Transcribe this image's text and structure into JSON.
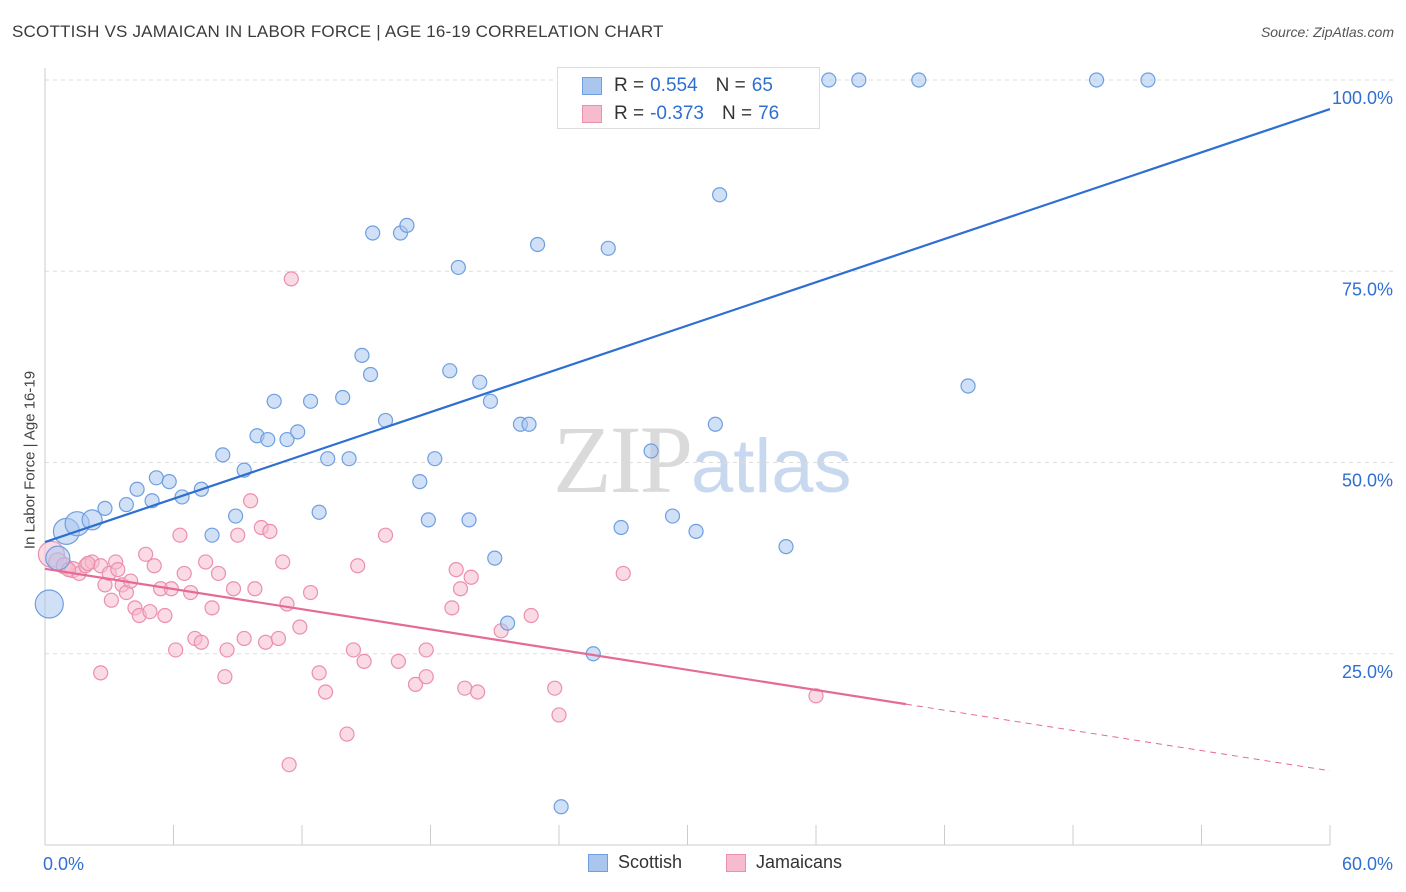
{
  "header": {
    "title": "SCOTTISH VS JAMAICAN IN LABOR FORCE | AGE 16-19 CORRELATION CHART",
    "source": "Source: ZipAtlas.com"
  },
  "watermark": {
    "zip": "ZIP",
    "atlas": "atlas"
  },
  "legend": {
    "rows": [
      {
        "r_label": "R =",
        "r_value": "0.554",
        "n_label": "N =",
        "n_value": "65"
      },
      {
        "r_label": "R =",
        "r_value": "-0.373",
        "n_label": "N =",
        "n_value": "76"
      }
    ]
  },
  "bottom_legend": {
    "scottish": "Scottish",
    "jamaicans": "Jamaicans"
  },
  "colors": {
    "scottish_fill": "#a9c6ef",
    "scottish_stroke": "#6f9fe0",
    "scottish_line": "#2f6fd1",
    "jamaican_fill": "#f6bccd",
    "jamaican_stroke": "#ec8fad",
    "jamaican_line": "#e56a95",
    "tick_label": "#2f6fd1",
    "grid": "#dddddd"
  },
  "chart_data": {
    "type": "scatter",
    "title": "SCOTTISH VS JAMAICAN IN LABOR FORCE | AGE 16-19 CORRELATION CHART",
    "ylabel": "In Labor Force | Age 16-19",
    "xlabel": "",
    "xlim": [
      0,
      60
    ],
    "ylim": [
      0,
      100
    ],
    "x_tick_labels": [
      "0.0%",
      "60.0%"
    ],
    "y_ticks": [
      25,
      50,
      75,
      100
    ],
    "y_tick_labels": [
      "25.0%",
      "50.0%",
      "75.0%",
      "100.0%"
    ],
    "grid": true,
    "legend_position": "top-center",
    "series": [
      {
        "name": "Scottish",
        "r": 0.554,
        "n": 65,
        "trend": {
          "x": [
            0,
            60
          ],
          "y": [
            39.6,
            96.2
          ],
          "dashed_from_x": null
        },
        "points": [
          [
            0.2,
            31.5,
            28
          ],
          [
            0.6,
            37.5,
            24
          ],
          [
            1.0,
            41.0,
            26
          ],
          [
            1.5,
            42.0,
            24
          ],
          [
            2.2,
            42.5,
            20
          ],
          [
            2.8,
            44.0,
            14
          ],
          [
            3.8,
            44.5,
            14
          ],
          [
            4.3,
            46.5,
            14
          ],
          [
            5.0,
            45.0,
            14
          ],
          [
            5.2,
            48.0,
            14
          ],
          [
            5.8,
            47.5,
            14
          ],
          [
            6.4,
            45.5,
            14
          ],
          [
            7.3,
            46.5,
            14
          ],
          [
            7.8,
            40.5,
            14
          ],
          [
            8.3,
            51.0,
            14
          ],
          [
            8.9,
            43.0,
            14
          ],
          [
            9.3,
            49.0,
            14
          ],
          [
            9.9,
            53.5,
            14
          ],
          [
            10.4,
            53.0,
            14
          ],
          [
            10.7,
            58.0,
            14
          ],
          [
            11.3,
            53.0,
            14
          ],
          [
            11.8,
            54.0,
            14
          ],
          [
            12.4,
            58.0,
            14
          ],
          [
            12.8,
            43.5,
            14
          ],
          [
            13.2,
            50.5,
            14
          ],
          [
            13.9,
            58.5,
            14
          ],
          [
            14.2,
            50.5,
            14
          ],
          [
            14.8,
            64.0,
            14
          ],
          [
            15.3,
            80.0,
            14
          ],
          [
            15.9,
            55.5,
            14
          ],
          [
            16.6,
            80.0,
            14
          ],
          [
            16.9,
            81.0,
            14
          ],
          [
            17.5,
            47.5,
            14
          ],
          [
            17.9,
            42.5,
            14
          ],
          [
            18.2,
            50.5,
            14
          ],
          [
            18.9,
            62.0,
            14
          ],
          [
            19.3,
            75.5,
            14
          ],
          [
            19.8,
            42.5,
            14
          ],
          [
            20.3,
            60.5,
            14
          ],
          [
            20.8,
            58.0,
            14
          ],
          [
            21.0,
            37.5,
            14
          ],
          [
            21.6,
            29.0,
            14
          ],
          [
            22.2,
            55.0,
            14
          ],
          [
            22.6,
            55.0,
            14
          ],
          [
            23.0,
            78.5,
            14
          ],
          [
            24.1,
            5.0,
            14
          ],
          [
            24.3,
            100.0,
            14
          ],
          [
            25.6,
            25.0,
            14
          ],
          [
            26.3,
            78.0,
            14
          ],
          [
            26.9,
            41.5,
            14
          ],
          [
            28.1,
            100.0,
            14
          ],
          [
            28.3,
            51.5,
            14
          ],
          [
            29.3,
            43.0,
            14
          ],
          [
            30.4,
            41.0,
            14
          ],
          [
            31.3,
            55.0,
            14
          ],
          [
            31.5,
            85.0,
            14
          ],
          [
            34.6,
            39.0,
            14
          ],
          [
            36.6,
            100.0,
            14
          ],
          [
            38.0,
            100.0,
            14
          ],
          [
            40.8,
            100.0,
            14
          ],
          [
            43.1,
            60.0,
            14
          ],
          [
            49.1,
            100.0,
            14
          ],
          [
            51.5,
            100.0,
            14
          ],
          [
            26.8,
            100.0,
            14
          ],
          [
            15.2,
            61.5,
            14
          ]
        ]
      },
      {
        "name": "Jamaicans",
        "r": -0.373,
        "n": 76,
        "trend": {
          "x": [
            0,
            60
          ],
          "y": [
            36.1,
            9.7
          ],
          "dashed_from_x": 40.2
        },
        "points": [
          [
            0.3,
            38.0,
            26
          ],
          [
            0.6,
            37.0,
            18
          ],
          [
            0.9,
            36.5,
            16
          ],
          [
            1.3,
            36.0,
            16
          ],
          [
            1.6,
            35.5,
            14
          ],
          [
            1.9,
            36.5,
            14
          ],
          [
            2.2,
            37.0,
            14
          ],
          [
            2.6,
            36.5,
            14
          ],
          [
            2.8,
            34.0,
            14
          ],
          [
            2.6,
            22.5,
            14
          ],
          [
            3.0,
            35.5,
            14
          ],
          [
            3.3,
            37.0,
            14
          ],
          [
            3.1,
            32.0,
            14
          ],
          [
            3.4,
            36.0,
            14
          ],
          [
            3.6,
            34.0,
            14
          ],
          [
            3.8,
            33.0,
            14
          ],
          [
            4.0,
            34.5,
            14
          ],
          [
            4.2,
            31.0,
            14
          ],
          [
            4.4,
            30.0,
            14
          ],
          [
            4.7,
            38.0,
            14
          ],
          [
            4.9,
            30.5,
            14
          ],
          [
            5.1,
            36.5,
            14
          ],
          [
            5.4,
            33.5,
            14
          ],
          [
            5.6,
            30.0,
            14
          ],
          [
            5.9,
            33.5,
            14
          ],
          [
            6.1,
            25.5,
            14
          ],
          [
            6.3,
            40.5,
            14
          ],
          [
            6.5,
            35.5,
            14
          ],
          [
            6.8,
            33.0,
            14
          ],
          [
            7.0,
            27.0,
            14
          ],
          [
            7.3,
            26.5,
            14
          ],
          [
            7.5,
            37.0,
            14
          ],
          [
            7.8,
            31.0,
            14
          ],
          [
            8.1,
            35.5,
            14
          ],
          [
            8.4,
            22.0,
            14
          ],
          [
            8.5,
            25.5,
            14
          ],
          [
            8.8,
            33.5,
            14
          ],
          [
            9.0,
            40.5,
            14
          ],
          [
            9.3,
            27.0,
            14
          ],
          [
            9.6,
            45.0,
            14
          ],
          [
            9.8,
            33.5,
            14
          ],
          [
            10.1,
            41.5,
            14
          ],
          [
            10.3,
            26.5,
            14
          ],
          [
            10.5,
            41.0,
            14
          ],
          [
            10.9,
            27.0,
            14
          ],
          [
            11.1,
            37.0,
            14
          ],
          [
            11.3,
            31.5,
            14
          ],
          [
            11.4,
            10.5,
            14
          ],
          [
            11.5,
            74.0,
            14
          ],
          [
            11.9,
            28.5,
            14
          ],
          [
            12.4,
            33.0,
            14
          ],
          [
            12.8,
            22.5,
            14
          ],
          [
            13.1,
            20.0,
            14
          ],
          [
            14.1,
            14.5,
            14
          ],
          [
            14.4,
            25.5,
            14
          ],
          [
            14.6,
            36.5,
            14
          ],
          [
            14.9,
            24.0,
            14
          ],
          [
            15.9,
            40.5,
            14
          ],
          [
            16.5,
            24.0,
            14
          ],
          [
            17.3,
            21.0,
            14
          ],
          [
            17.8,
            22.0,
            14
          ],
          [
            17.8,
            25.5,
            14
          ],
          [
            19.0,
            31.0,
            14
          ],
          [
            19.2,
            36.0,
            14
          ],
          [
            19.4,
            33.5,
            14
          ],
          [
            19.6,
            20.5,
            14
          ],
          [
            19.9,
            35.0,
            14
          ],
          [
            20.2,
            20.0,
            14
          ],
          [
            21.3,
            28.0,
            14
          ],
          [
            22.7,
            30.0,
            14
          ],
          [
            23.8,
            20.5,
            14
          ],
          [
            24.0,
            17.0,
            14
          ],
          [
            27.0,
            35.5,
            14
          ],
          [
            36.0,
            19.5,
            14
          ],
          [
            1.1,
            36.0,
            14
          ],
          [
            2.0,
            36.8,
            14
          ]
        ]
      }
    ]
  }
}
